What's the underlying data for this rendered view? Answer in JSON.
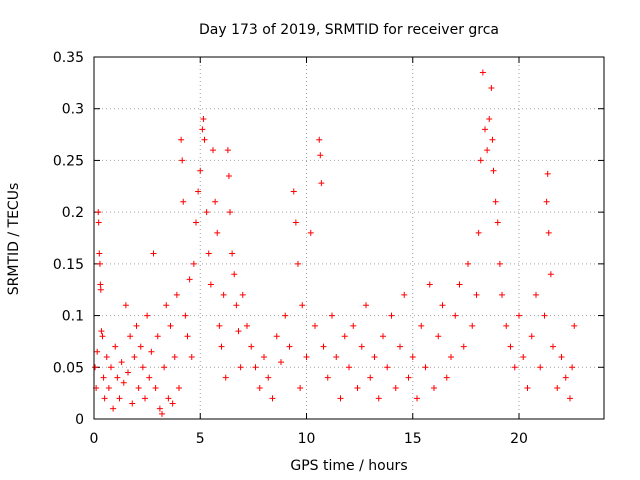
{
  "chart_data": {
    "type": "scatter",
    "title": "Day 173 of 2019, SRMTID for receiver grca",
    "xlabel": "GPS time / hours",
    "ylabel": "SRMTID / TECUs",
    "xlim": [
      0,
      24
    ],
    "ylim": [
      0,
      0.35
    ],
    "xticks": [
      0,
      5,
      10,
      15,
      20
    ],
    "xtick_labels": [
      "0",
      "5",
      "10",
      "15",
      "20"
    ],
    "yticks": [
      0,
      0.05,
      0.1,
      0.15,
      0.2,
      0.25,
      0.3,
      0.35
    ],
    "ytick_labels": [
      "0",
      "0.05",
      "0.1",
      "0.15",
      "0.2",
      "0.25",
      "0.3",
      "0.35"
    ],
    "grid": true,
    "marker": "+",
    "marker_color": "#ff0000",
    "series": [
      {
        "name": "SRMTID",
        "points": [
          [
            0.05,
            0.05
          ],
          [
            0.1,
            0.03
          ],
          [
            0.15,
            0.065
          ],
          [
            0.2,
            0.2
          ],
          [
            0.22,
            0.19
          ],
          [
            0.25,
            0.16
          ],
          [
            0.28,
            0.15
          ],
          [
            0.3,
            0.13
          ],
          [
            0.32,
            0.125
          ],
          [
            0.35,
            0.085
          ],
          [
            0.4,
            0.08
          ],
          [
            0.45,
            0.04
          ],
          [
            0.5,
            0.02
          ],
          [
            0.6,
            0.06
          ],
          [
            0.7,
            0.03
          ],
          [
            0.8,
            0.05
          ],
          [
            0.9,
            0.01
          ],
          [
            1.0,
            0.07
          ],
          [
            1.1,
            0.04
          ],
          [
            1.2,
            0.02
          ],
          [
            1.3,
            0.055
          ],
          [
            1.4,
            0.035
          ],
          [
            1.5,
            0.11
          ],
          [
            1.6,
            0.045
          ],
          [
            1.7,
            0.08
          ],
          [
            1.8,
            0.015
          ],
          [
            1.9,
            0.06
          ],
          [
            2.0,
            0.09
          ],
          [
            2.1,
            0.03
          ],
          [
            2.2,
            0.07
          ],
          [
            2.3,
            0.05
          ],
          [
            2.4,
            0.02
          ],
          [
            2.5,
            0.1
          ],
          [
            2.6,
            0.04
          ],
          [
            2.7,
            0.065
          ],
          [
            2.8,
            0.16
          ],
          [
            2.9,
            0.03
          ],
          [
            3.0,
            0.08
          ],
          [
            3.1,
            0.01
          ],
          [
            3.2,
            0.005
          ],
          [
            3.3,
            0.05
          ],
          [
            3.4,
            0.11
          ],
          [
            3.5,
            0.02
          ],
          [
            3.6,
            0.09
          ],
          [
            3.7,
            0.015
          ],
          [
            3.8,
            0.06
          ],
          [
            3.9,
            0.12
          ],
          [
            4.0,
            0.03
          ],
          [
            4.1,
            0.27
          ],
          [
            4.15,
            0.25
          ],
          [
            4.2,
            0.21
          ],
          [
            4.3,
            0.1
          ],
          [
            4.4,
            0.08
          ],
          [
            4.5,
            0.135
          ],
          [
            4.6,
            0.06
          ],
          [
            4.7,
            0.15
          ],
          [
            4.8,
            0.19
          ],
          [
            4.9,
            0.22
          ],
          [
            5.0,
            0.24
          ],
          [
            5.1,
            0.28
          ],
          [
            5.15,
            0.29
          ],
          [
            5.2,
            0.27
          ],
          [
            5.3,
            0.2
          ],
          [
            5.4,
            0.16
          ],
          [
            5.5,
            0.13
          ],
          [
            5.6,
            0.26
          ],
          [
            5.7,
            0.21
          ],
          [
            5.8,
            0.18
          ],
          [
            5.9,
            0.09
          ],
          [
            6.0,
            0.07
          ],
          [
            6.1,
            0.12
          ],
          [
            6.2,
            0.04
          ],
          [
            6.3,
            0.26
          ],
          [
            6.35,
            0.235
          ],
          [
            6.4,
            0.2
          ],
          [
            6.5,
            0.16
          ],
          [
            6.6,
            0.14
          ],
          [
            6.7,
            0.11
          ],
          [
            6.8,
            0.085
          ],
          [
            6.9,
            0.05
          ],
          [
            7.0,
            0.12
          ],
          [
            7.2,
            0.09
          ],
          [
            7.4,
            0.07
          ],
          [
            7.6,
            0.05
          ],
          [
            7.8,
            0.03
          ],
          [
            8.0,
            0.06
          ],
          [
            8.2,
            0.04
          ],
          [
            8.4,
            0.02
          ],
          [
            8.6,
            0.08
          ],
          [
            8.8,
            0.055
          ],
          [
            9.0,
            0.1
          ],
          [
            9.2,
            0.07
          ],
          [
            9.4,
            0.22
          ],
          [
            9.5,
            0.19
          ],
          [
            9.6,
            0.15
          ],
          [
            9.7,
            0.03
          ],
          [
            9.8,
            0.11
          ],
          [
            10.0,
            0.06
          ],
          [
            10.2,
            0.18
          ],
          [
            10.4,
            0.09
          ],
          [
            10.6,
            0.27
          ],
          [
            10.65,
            0.255
          ],
          [
            10.7,
            0.228
          ],
          [
            10.8,
            0.07
          ],
          [
            11.0,
            0.04
          ],
          [
            11.2,
            0.1
          ],
          [
            11.4,
            0.06
          ],
          [
            11.6,
            0.02
          ],
          [
            11.8,
            0.08
          ],
          [
            12.0,
            0.05
          ],
          [
            12.2,
            0.09
          ],
          [
            12.4,
            0.03
          ],
          [
            12.6,
            0.07
          ],
          [
            12.8,
            0.11
          ],
          [
            13.0,
            0.04
          ],
          [
            13.2,
            0.06
          ],
          [
            13.4,
            0.02
          ],
          [
            13.6,
            0.08
          ],
          [
            13.8,
            0.05
          ],
          [
            14.0,
            0.1
          ],
          [
            14.2,
            0.03
          ],
          [
            14.4,
            0.07
          ],
          [
            14.6,
            0.12
          ],
          [
            14.8,
            0.04
          ],
          [
            15.0,
            0.06
          ],
          [
            15.2,
            0.02
          ],
          [
            15.4,
            0.09
          ],
          [
            15.6,
            0.05
          ],
          [
            15.8,
            0.13
          ],
          [
            16.0,
            0.03
          ],
          [
            16.2,
            0.08
          ],
          [
            16.4,
            0.11
          ],
          [
            16.6,
            0.04
          ],
          [
            16.8,
            0.06
          ],
          [
            17.0,
            0.1
          ],
          [
            17.2,
            0.13
          ],
          [
            17.4,
            0.07
          ],
          [
            17.6,
            0.15
          ],
          [
            17.8,
            0.09
          ],
          [
            18.0,
            0.12
          ],
          [
            18.1,
            0.18
          ],
          [
            18.2,
            0.25
          ],
          [
            18.3,
            0.335
          ],
          [
            18.4,
            0.28
          ],
          [
            18.5,
            0.26
          ],
          [
            18.6,
            0.29
          ],
          [
            18.7,
            0.32
          ],
          [
            18.75,
            0.27
          ],
          [
            18.8,
            0.24
          ],
          [
            18.9,
            0.21
          ],
          [
            19.0,
            0.19
          ],
          [
            19.1,
            0.15
          ],
          [
            19.2,
            0.12
          ],
          [
            19.4,
            0.09
          ],
          [
            19.6,
            0.07
          ],
          [
            19.8,
            0.05
          ],
          [
            20.0,
            0.1
          ],
          [
            20.2,
            0.06
          ],
          [
            20.4,
            0.03
          ],
          [
            20.6,
            0.08
          ],
          [
            20.8,
            0.12
          ],
          [
            21.0,
            0.05
          ],
          [
            21.2,
            0.1
          ],
          [
            21.3,
            0.21
          ],
          [
            21.35,
            0.237
          ],
          [
            21.4,
            0.18
          ],
          [
            21.5,
            0.14
          ],
          [
            21.6,
            0.07
          ],
          [
            21.8,
            0.03
          ],
          [
            22.0,
            0.06
          ],
          [
            22.2,
            0.04
          ],
          [
            22.4,
            0.02
          ],
          [
            22.5,
            0.05
          ],
          [
            22.6,
            0.09
          ]
        ]
      }
    ]
  }
}
